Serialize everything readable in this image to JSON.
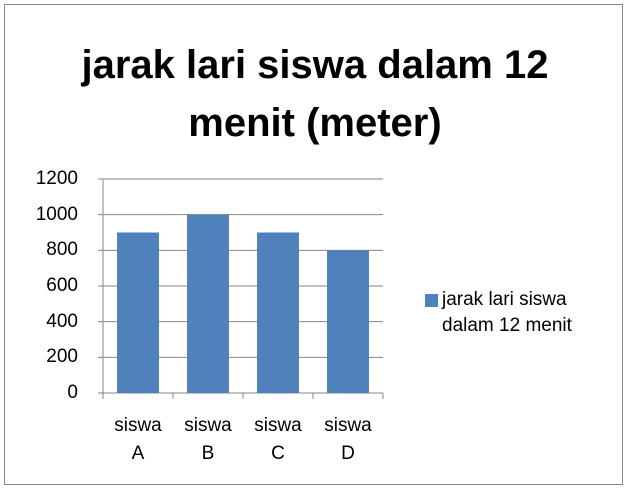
{
  "chart_data": {
    "type": "bar",
    "title": "jarak lari siswa dalam 12 menit (meter)",
    "categories": [
      "siswa A",
      "siswa B",
      "siswa C",
      "siswa D"
    ],
    "series": [
      {
        "name": "jarak lari siswa dalam 12 menit",
        "color": "#4f81bd",
        "values": [
          900,
          1000,
          900,
          800
        ]
      }
    ],
    "ylim": [
      0,
      1200
    ],
    "yticks": [
      0,
      200,
      400,
      600,
      800,
      1000,
      1200
    ],
    "grid": true,
    "legend": "right"
  }
}
